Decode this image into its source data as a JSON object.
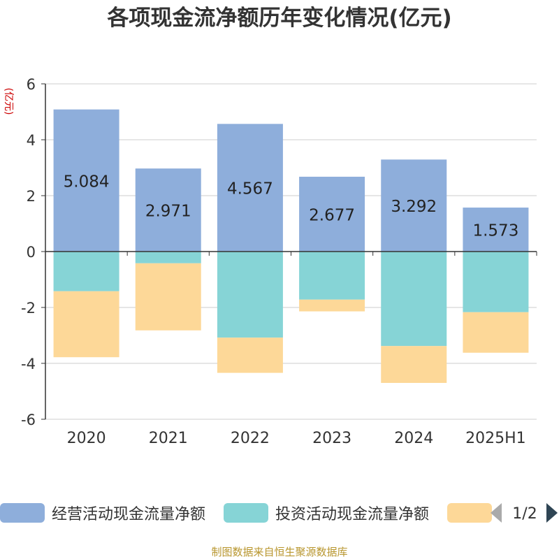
{
  "chart_data": {
    "type": "bar",
    "stacked": true,
    "title": "各项现金流净额历年变化情况(亿元)",
    "ylabel": "(亿元)",
    "categories": [
      "2020",
      "2021",
      "2022",
      "2023",
      "2024",
      "2025H1"
    ],
    "ylim": [
      -6,
      6
    ],
    "yticks": [
      6,
      4,
      2,
      0,
      -2,
      -4,
      -6
    ],
    "grid": true,
    "series": [
      {
        "name": "经营活动现金流量净额",
        "color": "#8eaedb",
        "values": [
          5.084,
          2.971,
          4.567,
          2.677,
          3.292,
          1.573
        ],
        "labels": [
          "5.084",
          "2.971",
          "4.567",
          "2.677",
          "3.292",
          "1.573"
        ]
      },
      {
        "name": "投资活动现金流量净额",
        "color": "#86d4d6",
        "values": [
          -1.42,
          -0.42,
          -3.08,
          -1.72,
          -3.38,
          -2.17
        ]
      },
      {
        "name": "",
        "color": "#fdd898",
        "values": [
          -2.36,
          -2.4,
          -1.26,
          -0.42,
          -1.32,
          -1.45
        ]
      }
    ],
    "legend": {
      "position": "bottom",
      "page_indicator": "1/2"
    },
    "footer": "制图数据来自恒生聚源数据库"
  }
}
